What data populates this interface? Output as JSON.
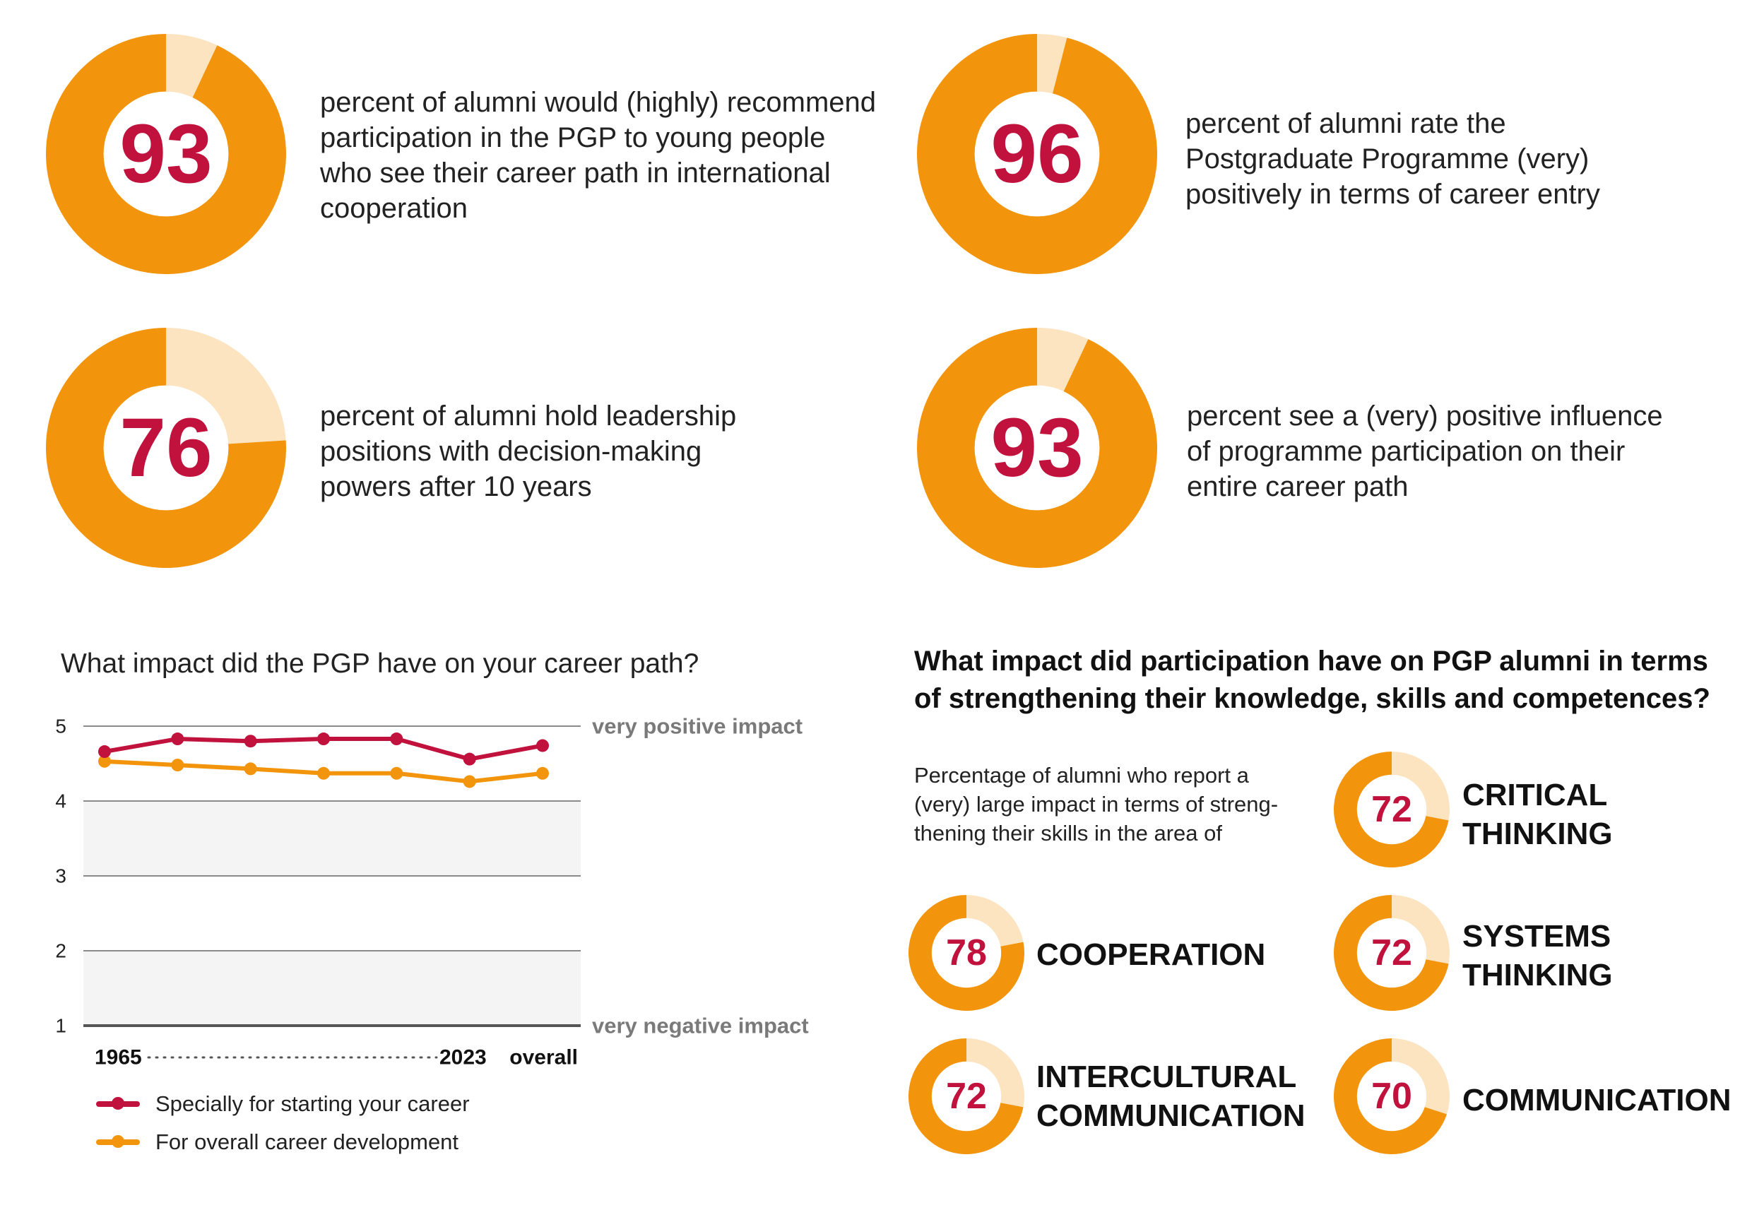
{
  "colors": {
    "orange": "#f3950c",
    "light_orange": "#fde4c1",
    "red": "#c0123c",
    "grid": "#8a8a8a",
    "band": "#f4f4f4",
    "annotation_gray": "#7a7a7a"
  },
  "key_figures": [
    {
      "value": 93,
      "lines": [
        "percent of alumni would (highly) recommend",
        "participation in the PGP to young people",
        "who see their career path in international",
        "cooperation"
      ]
    },
    {
      "value": 96,
      "lines": [
        "percent of alumni rate the",
        "Postgraduate Programme (very)",
        "positively in terms of career entry"
      ]
    },
    {
      "value": 76,
      "lines": [
        "percent of alumni hold leadership",
        "positions with decision-making",
        "powers after 10 years"
      ]
    },
    {
      "value": 93,
      "lines": [
        "percent see a (very) positive influence",
        "of programme participation on their",
        "entire career path"
      ]
    }
  ],
  "chart_data": [
    {
      "type": "line",
      "title": "What impact did the PGP have on your career path?",
      "x": [
        "1965",
        "",
        "",
        "",
        "",
        "2023",
        "overall"
      ],
      "x_tick_labels": [
        "1965",
        "2023",
        "overall"
      ],
      "y_ticks": [
        1,
        2,
        3,
        4,
        5
      ],
      "ylim": [
        1,
        5
      ],
      "y_annotations": {
        "top": "very positive impact",
        "bottom": "very negative impact"
      },
      "series": [
        {
          "name": "Specially for starting your career",
          "color": "#c0123c",
          "values": [
            4.66,
            4.83,
            4.8,
            4.83,
            4.83,
            4.56,
            4.74
          ]
        },
        {
          "name": "For overall career development",
          "color": "#f3950c",
          "values": [
            4.53,
            4.48,
            4.43,
            4.37,
            4.37,
            4.26,
            4.37
          ]
        }
      ],
      "grid": true,
      "legend_position": "bottom-left"
    },
    {
      "type": "pie",
      "title": "What impact did participation have on PGP alumni in terms of strengthening their knowledge, skills and competences?",
      "subtitle": "Percentage of alumni who report a (very) large impact in terms of streng-thening their skills in the area of",
      "unit": "percent",
      "categories": [
        "CRITICAL THINKING",
        "COOPERATION",
        "SYSTEMS THINKING",
        "INTERCULTURAL COMMUNICATION",
        "COMMUNICATION"
      ],
      "values": [
        72,
        78,
        72,
        72,
        70
      ]
    }
  ],
  "skills_section": {
    "title_lines": [
      "What impact did participation have on PGP alumni in terms",
      "of strengthening their knowledge, skills and competences?"
    ],
    "intro_lines": [
      "Percentage of alumni who report a",
      "(very) large impact in terms of streng-",
      "thening their skills in the area of"
    ],
    "skills": [
      {
        "value": 72,
        "label_lines": [
          "CRITICAL",
          "THINKING"
        ]
      },
      {
        "value": 78,
        "label_lines": [
          "COOPERATION"
        ]
      },
      {
        "value": 72,
        "label_lines": [
          "SYSTEMS",
          "THINKING"
        ]
      },
      {
        "value": 72,
        "label_lines": [
          "INTERCULTURAL",
          "COMMUNICATION"
        ]
      },
      {
        "value": 70,
        "label_lines": [
          "COMMUNICATION"
        ]
      }
    ]
  }
}
